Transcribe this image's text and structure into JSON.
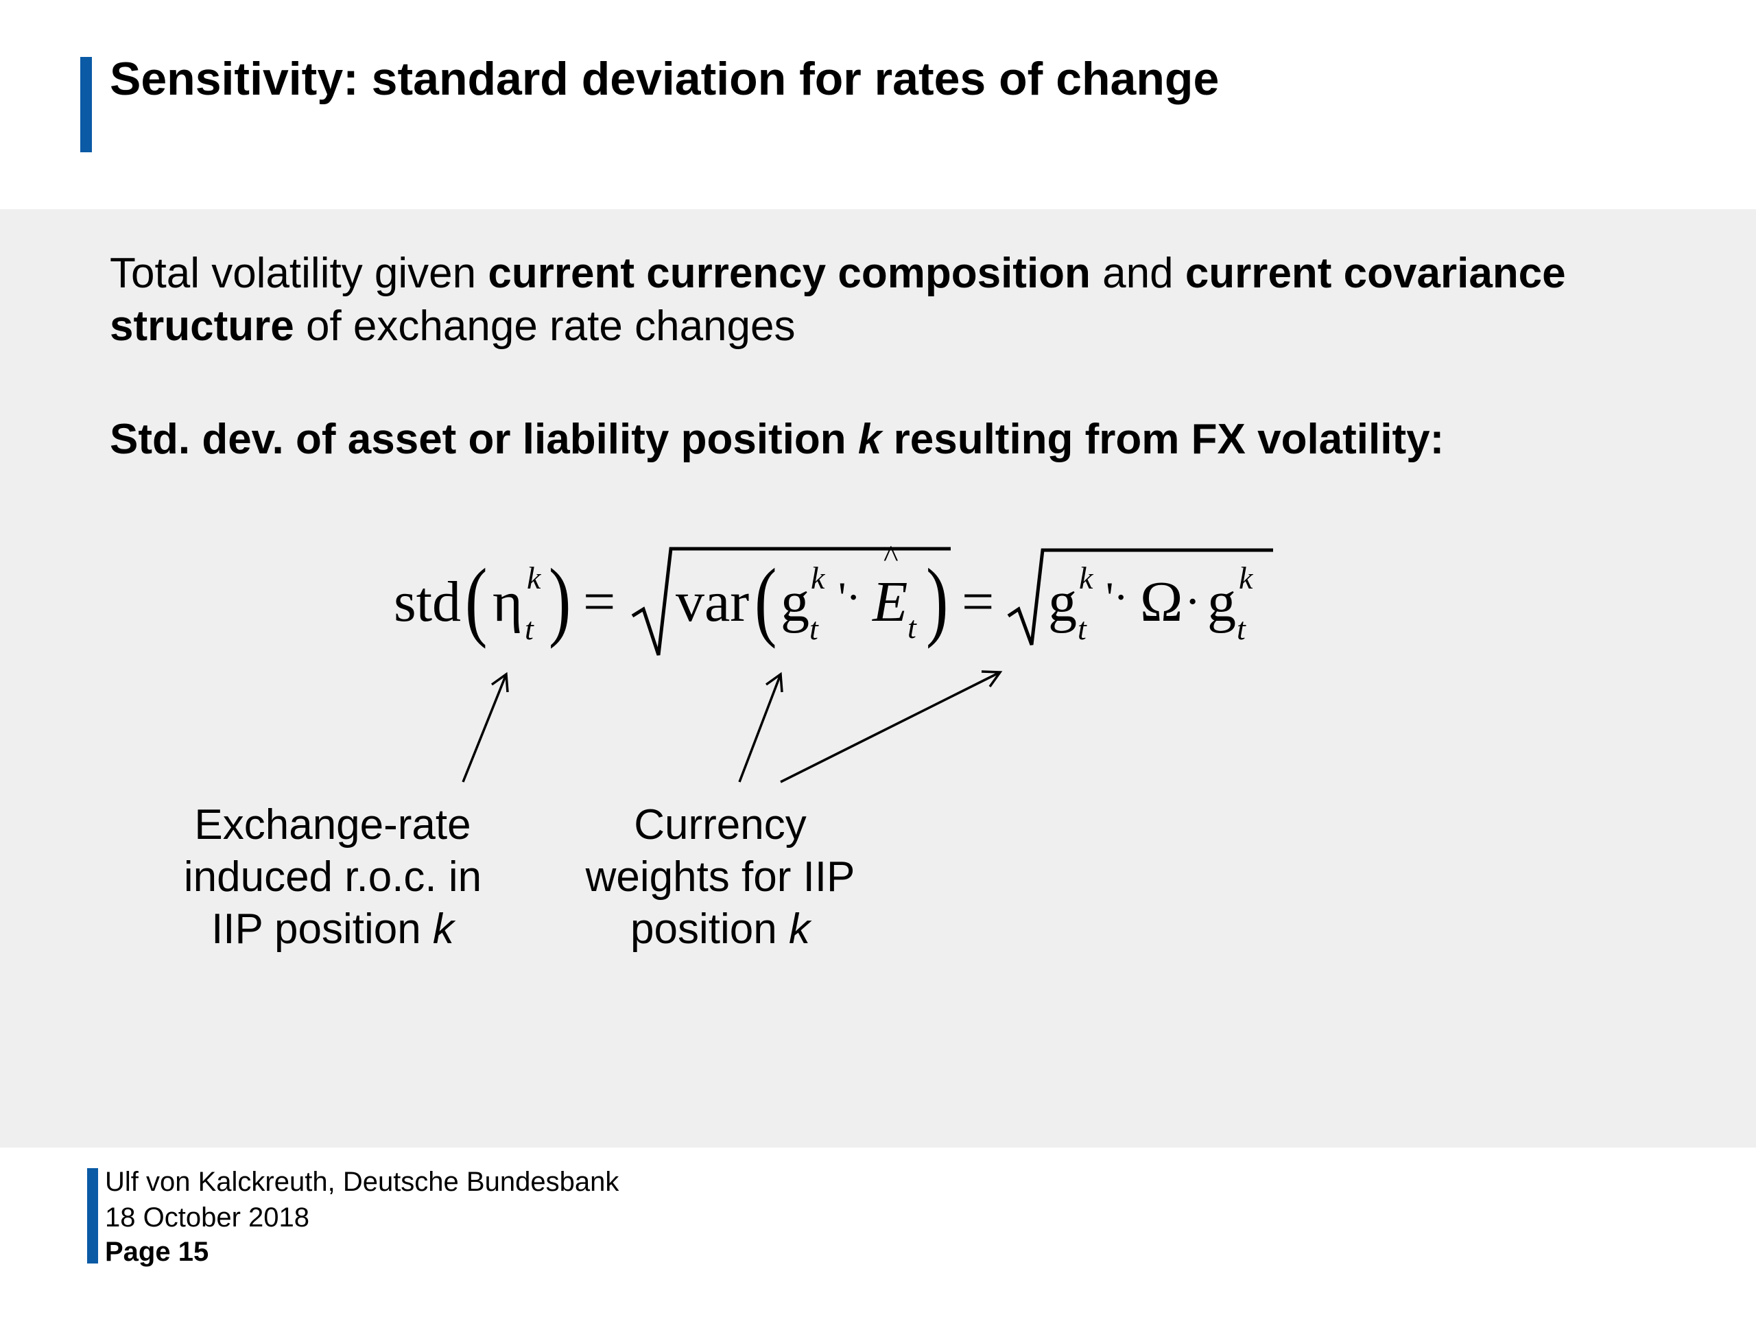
{
  "slide": {
    "title": "Sensitivity: standard deviation for rates of change",
    "intro": {
      "t1": "Total volatility given ",
      "b1": "current currency composition",
      "t2": " and ",
      "b2": "current covariance structure",
      "t3": " of exchange rate changes"
    },
    "subheading": {
      "part1": "Std. dev. of asset or liability position ",
      "var": "k",
      "part2": " resulting from FX volatility:"
    },
    "formula": {
      "std": "std",
      "eta": "η",
      "sup_k": "k",
      "sub_t": "t",
      "eq": "=",
      "var_fn": "var",
      "g": "g",
      "prime_dot": "'·",
      "E": "E",
      "hat": "^",
      "omega": "Ω",
      "cdot": "·",
      "paren_open": "(",
      "paren_close": ")"
    },
    "captions": {
      "left": {
        "line1": "Exchange-rate",
        "line2": "induced r.o.c. in",
        "line3_text": "IIP position ",
        "line3_var": "k"
      },
      "right": {
        "line1": "Currency",
        "line2": "weights for IIP",
        "line3_text": "position ",
        "line3_var": "k"
      }
    }
  },
  "footer": {
    "author": "Ulf von Kalckreuth, Deutsche Bundesbank",
    "date": "18 October 2018",
    "page": "Page 15"
  },
  "colors": {
    "accent": "#0a5aa5",
    "content_background": "#efefef"
  }
}
